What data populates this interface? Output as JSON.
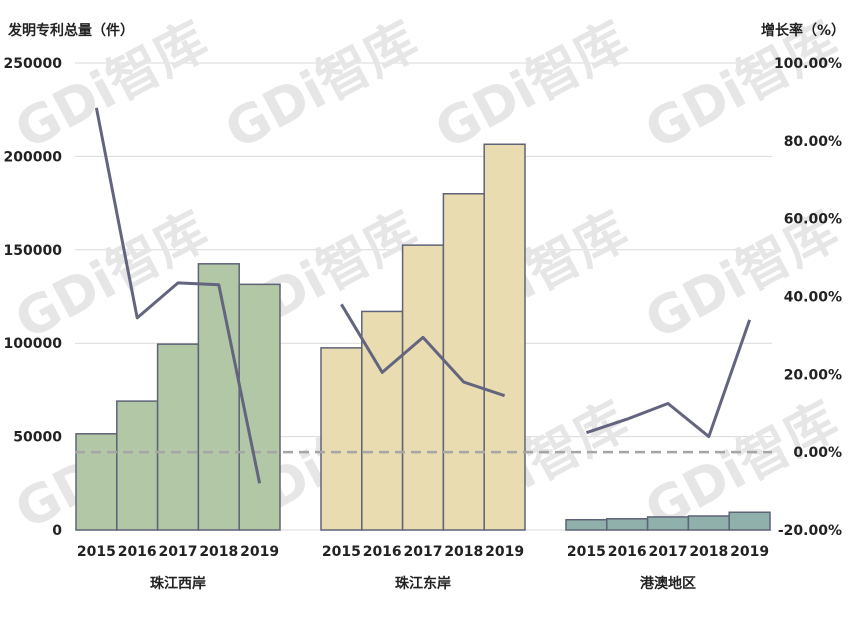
{
  "chart_data": {
    "type": "bar",
    "left_axis_title": "发明专利总量（件）",
    "right_axis_title": "增长率（%）",
    "y_left": {
      "min": 0,
      "max": 250000,
      "ticks": [
        0,
        50000,
        100000,
        150000,
        200000,
        250000
      ]
    },
    "y_right": {
      "min": -20,
      "max": 100,
      "ticks": [
        "-20.00%",
        "0.00%",
        "20.00%",
        "40.00%",
        "60.00%",
        "80.00%",
        "100.00%"
      ]
    },
    "watermark": "GDi智库",
    "groups": [
      {
        "name": "珠江西岸",
        "color": "#b2c7a6",
        "years": [
          "2015",
          "2016",
          "2017",
          "2018",
          "2019"
        ],
        "totals": [
          51500,
          69000,
          99500,
          142500,
          131500
        ],
        "growth": [
          88.5,
          34.5,
          43.5,
          43.0,
          -8.0
        ]
      },
      {
        "name": "珠江东岸",
        "color": "#e9dcb1",
        "years": [
          "2015",
          "2016",
          "2017",
          "2018",
          "2019"
        ],
        "totals": [
          97500,
          117000,
          152500,
          180000,
          206500
        ],
        "growth": [
          38.0,
          20.5,
          29.5,
          18.0,
          14.5
        ]
      },
      {
        "name": "港澳地区",
        "color": "#8fb0ab",
        "years": [
          "2015",
          "2016",
          "2017",
          "2018",
          "2019"
        ],
        "totals": [
          5500,
          6000,
          7000,
          7500,
          9500
        ],
        "growth": [
          5.0,
          8.5,
          12.5,
          4.0,
          34.0
        ]
      }
    ]
  }
}
